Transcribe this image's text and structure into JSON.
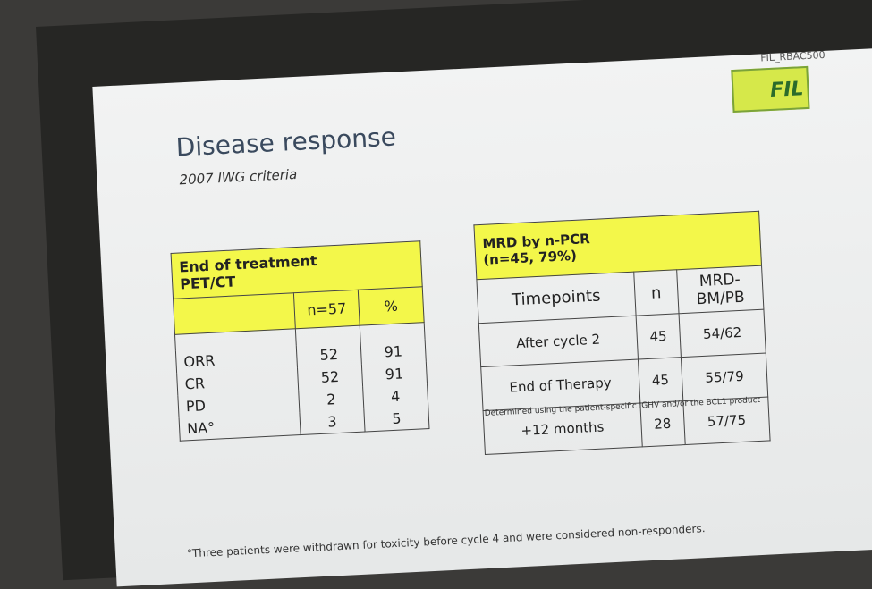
{
  "header": {
    "code": "FIL_RBAC500",
    "logo": "FIL",
    "title": "Disease response",
    "subtitle": "2007 IWG criteria"
  },
  "table1": {
    "title": [
      "End of treatment",
      "PET/CT"
    ],
    "columns": [
      "n=57",
      "%"
    ],
    "rows": [
      {
        "label": "ORR",
        "n": 52,
        "pct": 91
      },
      {
        "label": "CR",
        "n": 52,
        "pct": 91
      },
      {
        "label": "PD",
        "n": 2,
        "pct": 4
      },
      {
        "label": "NA°",
        "n": 3,
        "pct": 5
      }
    ]
  },
  "table2": {
    "title": [
      "MRD by n-PCR",
      "(n=45, 79%)"
    ],
    "columns": [
      "Timepoints",
      "n",
      [
        "MRD-",
        "BM/PB"
      ]
    ],
    "rows": [
      [
        "After cycle 2",
        45,
        "54/62"
      ],
      [
        "End of Therapy",
        45,
        "55/79"
      ],
      [
        "+12 months",
        28,
        "57/75"
      ]
    ],
    "note": "Determined using the patient-specific IGHV and/or the BCL1 product"
  },
  "footnote": "°Three patients were withdrawn for toxicity before cycle 4 and were considered non-responders."
}
